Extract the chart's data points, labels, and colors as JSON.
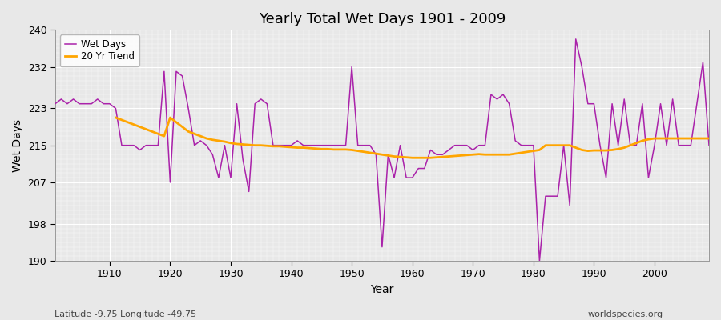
{
  "title": "Yearly Total Wet Days 1901 - 2009",
  "xlabel": "Year",
  "ylabel": "Wet Days",
  "subtitle_lat": "Latitude -9.75 Longitude -49.75",
  "watermark": "worldspecies.org",
  "wet_days_color": "#AA22AA",
  "trend_color": "#FFA500",
  "bg_color": "#E8E8E8",
  "fig_color": "#E8E8E8",
  "ylim": [
    190,
    240
  ],
  "yticks": [
    190,
    198,
    207,
    215,
    223,
    232,
    240
  ],
  "xticks": [
    1910,
    1920,
    1930,
    1940,
    1950,
    1960,
    1970,
    1980,
    1990,
    2000
  ],
  "xlim": [
    1901,
    2009
  ],
  "years": [
    1901,
    1902,
    1903,
    1904,
    1905,
    1906,
    1907,
    1908,
    1909,
    1910,
    1911,
    1912,
    1913,
    1914,
    1915,
    1916,
    1917,
    1918,
    1919,
    1920,
    1921,
    1922,
    1923,
    1924,
    1925,
    1926,
    1927,
    1928,
    1929,
    1930,
    1931,
    1932,
    1933,
    1934,
    1935,
    1936,
    1937,
    1938,
    1939,
    1940,
    1941,
    1942,
    1943,
    1944,
    1945,
    1946,
    1947,
    1948,
    1949,
    1950,
    1951,
    1952,
    1953,
    1954,
    1955,
    1956,
    1957,
    1958,
    1959,
    1960,
    1961,
    1962,
    1963,
    1964,
    1965,
    1966,
    1967,
    1968,
    1969,
    1970,
    1971,
    1972,
    1973,
    1974,
    1975,
    1976,
    1977,
    1978,
    1979,
    1980,
    1981,
    1982,
    1983,
    1984,
    1985,
    1986,
    1987,
    1988,
    1989,
    1990,
    1991,
    1992,
    1993,
    1994,
    1995,
    1996,
    1997,
    1998,
    1999,
    2000,
    2001,
    2002,
    2003,
    2004,
    2005,
    2006,
    2007,
    2008,
    2009
  ],
  "wet_days": [
    224,
    225,
    224,
    225,
    224,
    224,
    224,
    225,
    224,
    224,
    223,
    215,
    215,
    215,
    214,
    215,
    215,
    215,
    231,
    207,
    231,
    230,
    223,
    215,
    216,
    215,
    213,
    208,
    215,
    208,
    224,
    212,
    205,
    224,
    225,
    224,
    215,
    215,
    215,
    215,
    216,
    215,
    215,
    215,
    215,
    215,
    215,
    215,
    215,
    232,
    215,
    215,
    215,
    213,
    193,
    213,
    208,
    215,
    208,
    208,
    210,
    210,
    214,
    213,
    213,
    214,
    215,
    215,
    215,
    214,
    215,
    215,
    226,
    225,
    226,
    224,
    216,
    215,
    215,
    215,
    190,
    204,
    204,
    204,
    215,
    202,
    238,
    232,
    224,
    224,
    215,
    208,
    224,
    215,
    225,
    215,
    215,
    224,
    208,
    215,
    224,
    215,
    225,
    215,
    215,
    215,
    224,
    233,
    215
  ],
  "trend": [
    null,
    null,
    null,
    null,
    null,
    null,
    null,
    null,
    null,
    null,
    221,
    220.5,
    220,
    219.5,
    219,
    218.5,
    218,
    217.5,
    217,
    221,
    220,
    219,
    218,
    217.5,
    217,
    216.5,
    216.2,
    216,
    215.8,
    215.5,
    215.3,
    215.2,
    215.1,
    215.0,
    215.0,
    214.9,
    214.8,
    214.8,
    214.7,
    214.6,
    214.5,
    214.5,
    214.4,
    214.3,
    214.2,
    214.2,
    214.1,
    214.1,
    214.1,
    214.0,
    213.8,
    213.6,
    213.4,
    213.2,
    213.0,
    212.8,
    212.6,
    212.5,
    212.4,
    212.3,
    212.3,
    212.3,
    212.3,
    212.4,
    212.5,
    212.6,
    212.7,
    212.8,
    212.9,
    213.0,
    213.1,
    213.0,
    213.0,
    213.0,
    213.0,
    213.0,
    213.2,
    213.4,
    213.6,
    213.8,
    214.0,
    215.0,
    215.0,
    215.0,
    215.0,
    215.0,
    214.5,
    214.0,
    213.8,
    213.9,
    213.9,
    213.9,
    214.0,
    214.2,
    214.5,
    215.0,
    215.5,
    216.0,
    216.3,
    216.5,
    216.5,
    216.5,
    216.5,
    216.5,
    216.5,
    216.5,
    216.5,
    216.5,
    216.5
  ]
}
